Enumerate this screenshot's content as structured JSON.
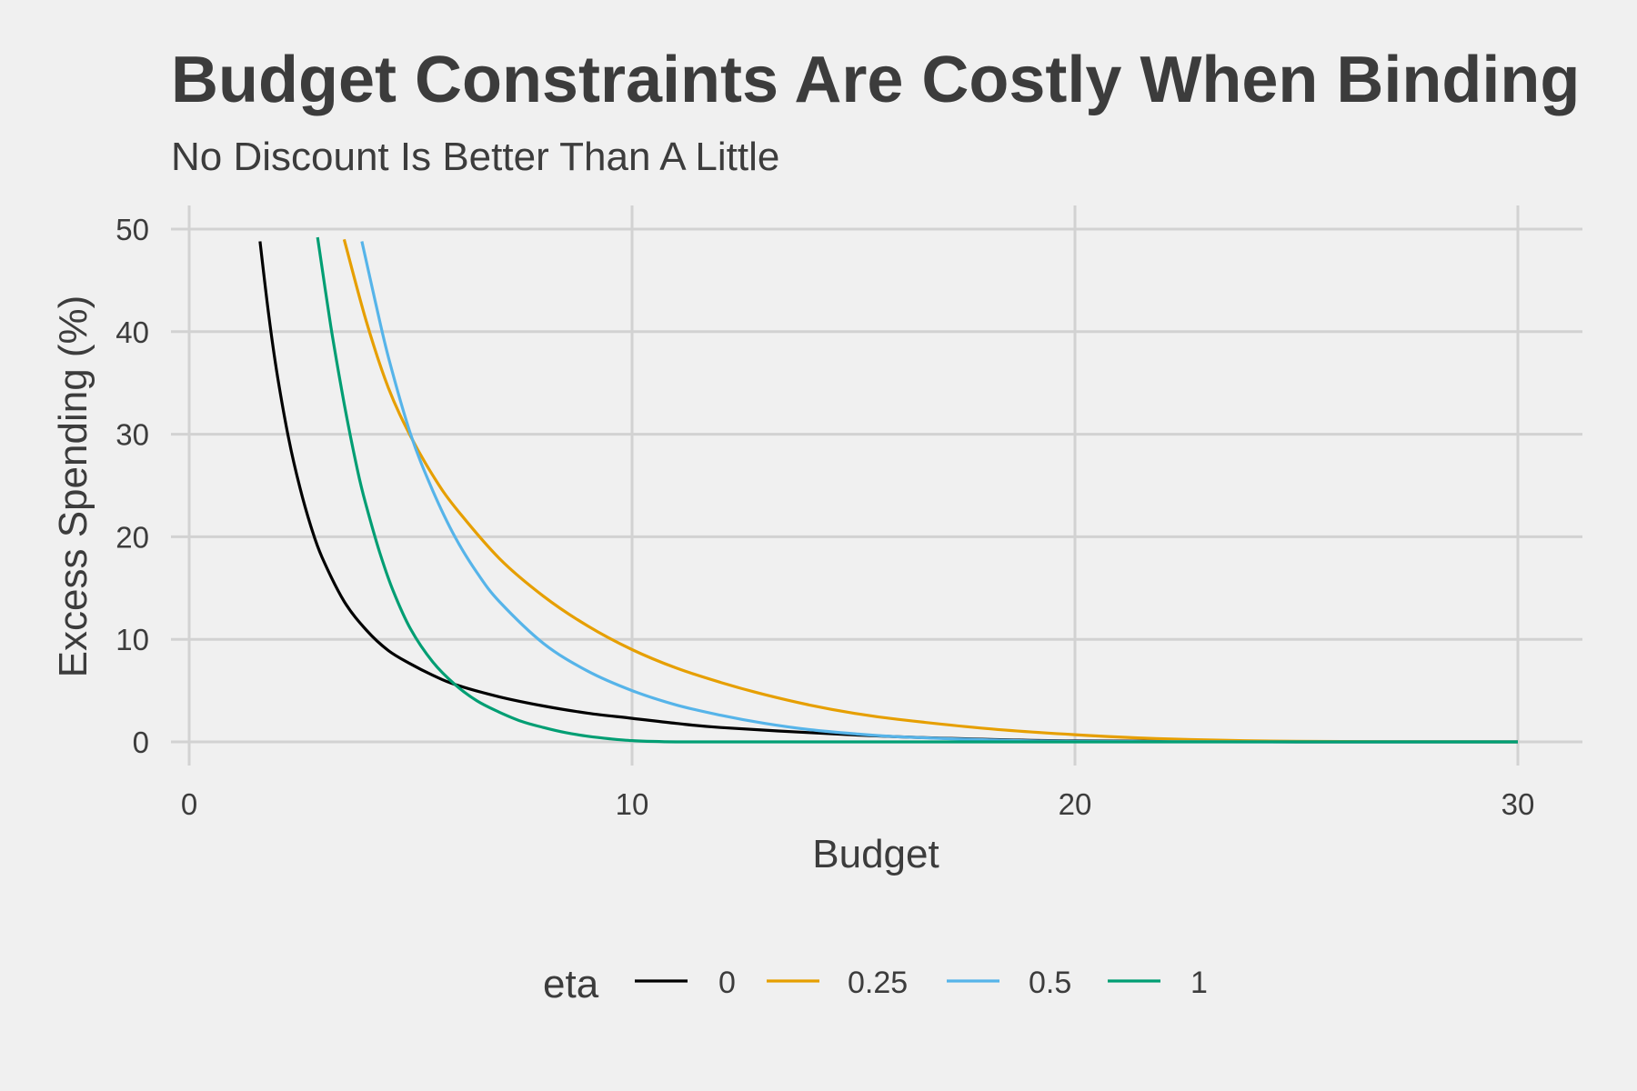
{
  "chart_data": {
    "type": "line",
    "title": "Budget Constraints Are Costly When Binding",
    "subtitle": "No Discount Is Better Than A Little",
    "xlabel": "Budget",
    "ylabel": "Excess Spending (%)",
    "xlim": [
      0,
      30
    ],
    "ylim": [
      0,
      50
    ],
    "xticks": [
      0,
      10,
      20,
      30
    ],
    "yticks": [
      0,
      10,
      20,
      30,
      40,
      50
    ],
    "grid": true,
    "legend": {
      "title": "eta",
      "position": "bottom"
    },
    "series": [
      {
        "name": "0",
        "color": "#000000",
        "x": [
          1.6,
          1.8,
          2,
          2.25,
          2.5,
          2.75,
          3,
          3.5,
          4,
          4.5,
          5,
          5.5,
          6,
          7,
          8,
          9,
          10,
          11,
          12,
          14,
          16,
          18,
          20,
          25,
          30
        ],
        "y": [
          48.8,
          41.5,
          35.5,
          29.5,
          24.8,
          21.0,
          18.0,
          13.7,
          10.9,
          8.9,
          7.6,
          6.5,
          5.6,
          4.4,
          3.5,
          2.8,
          2.3,
          1.8,
          1.4,
          0.9,
          0.5,
          0.25,
          0.1,
          0.0,
          0.0
        ]
      },
      {
        "name": "0.25",
        "color": "#E69F00",
        "x": [
          3.5,
          4,
          4.5,
          5,
          5.5,
          6,
          7,
          8,
          9,
          10,
          11,
          12,
          13,
          14,
          15,
          16,
          18,
          20,
          22,
          25,
          30
        ],
        "y": [
          49.0,
          41.0,
          34.5,
          29.8,
          26.0,
          22.9,
          17.9,
          14.2,
          11.3,
          9.0,
          7.2,
          5.8,
          4.6,
          3.6,
          2.8,
          2.2,
          1.3,
          0.7,
          0.3,
          0.05,
          0.0
        ]
      },
      {
        "name": "0.5",
        "color": "#56B4E9",
        "x": [
          3.9,
          4.2,
          4.5,
          5,
          5.5,
          6,
          6.5,
          7,
          8,
          9,
          10,
          11,
          12,
          13,
          14,
          15,
          16,
          18,
          20,
          25,
          30
        ],
        "y": [
          48.8,
          43.0,
          37.5,
          30.0,
          24.5,
          20.0,
          16.5,
          13.7,
          9.6,
          6.9,
          5.0,
          3.6,
          2.6,
          1.8,
          1.2,
          0.8,
          0.5,
          0.2,
          0.05,
          0.0,
          0.0
        ]
      },
      {
        "name": "1",
        "color": "#009E73",
        "x": [
          2.9,
          3.2,
          3.5,
          3.8,
          4,
          4.3,
          4.6,
          5,
          5.5,
          6,
          6.5,
          7,
          7.5,
          8,
          8.5,
          9,
          9.5,
          10,
          10.5,
          11,
          12,
          15,
          20,
          25,
          30
        ],
        "y": [
          49.2,
          40.5,
          33.0,
          26.5,
          23.0,
          18.5,
          14.8,
          11.0,
          7.8,
          5.6,
          4.0,
          2.9,
          2.0,
          1.4,
          0.9,
          0.55,
          0.3,
          0.12,
          0.04,
          0.0,
          0.0,
          0.0,
          0.0,
          0.0,
          0.0
        ]
      }
    ]
  }
}
